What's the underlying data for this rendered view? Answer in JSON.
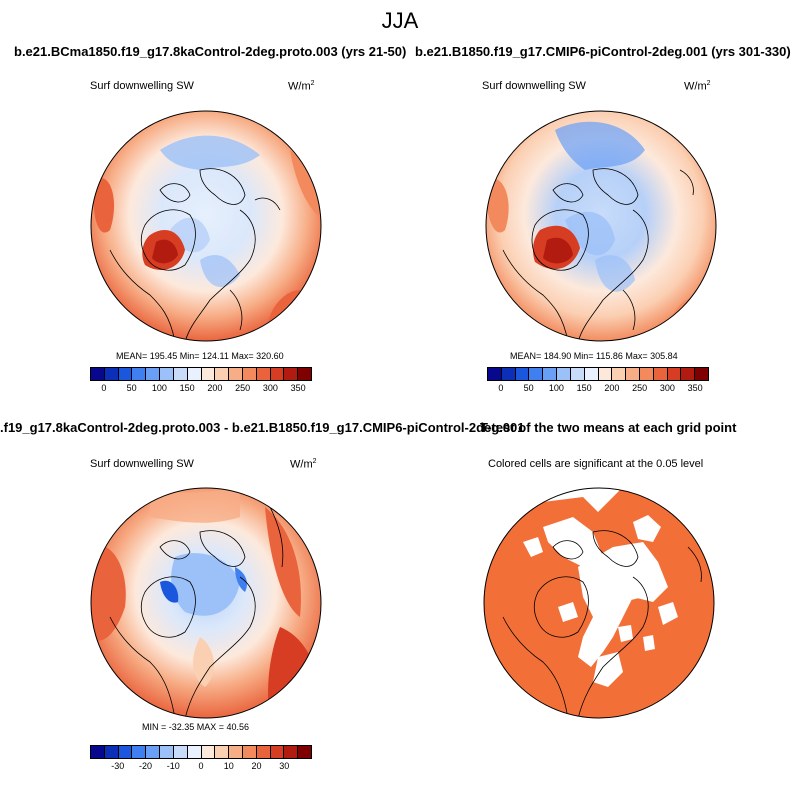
{
  "season": "JJA",
  "panels": [
    {
      "title": "b.e21.BCma1850.f19_g17.8kaControl-2deg.proto.003 (yrs 21-50)",
      "variable": "Surf downwelling SW",
      "units_base": "W/m",
      "units_exp": "2",
      "stats": "MEAN= 195.45  Min= 124.11  Max= 320.60"
    },
    {
      "title": "b.e21.B1850.f19_g17.CMIP6-piControl-2deg.001 (yrs 301-330)",
      "variable": "Surf downwelling SW",
      "units_base": "W/m",
      "units_exp": "2",
      "stats": "MEAN= 184.90  Min= 115.86  Max= 305.84"
    },
    {
      "title": ".f19_g17.8kaControl-2deg.proto.003 - b.e21.B1850.f19_g17.CMIP6-piControl-2deg.001",
      "variable": "Surf downwelling SW",
      "units_base": "W/m",
      "units_exp": "2",
      "stats": "MIN = -32.35 MAX =  40.56"
    },
    {
      "title": "T-test of the two means at each grid point",
      "subtitle": "Colored cells are significant at the 0.05 level"
    }
  ],
  "colorbars": {
    "absolute": {
      "labels": [
        "0",
        "50",
        "100",
        "150",
        "200",
        "250",
        "300",
        "350"
      ],
      "colors": [
        "#08088f",
        "#0c2fb8",
        "#1a57dc",
        "#3f7ff0",
        "#6a9ff6",
        "#9cc0f8",
        "#c8dcfa",
        "#e8f1fd",
        "#fde9dc",
        "#fbcfb2",
        "#f7ad86",
        "#f28a5d",
        "#e9633c",
        "#d63d22",
        "#b21c10",
        "#7f0000"
      ]
    },
    "difference": {
      "labels": [
        "-30",
        "-20",
        "-10",
        "0",
        "10",
        "20",
        "30"
      ],
      "colors": [
        "#08088f",
        "#0c2fb8",
        "#1a57dc",
        "#3f7ff0",
        "#6a9ff6",
        "#9cc0f8",
        "#c8dcfa",
        "#e8f1fd",
        "#fde9dc",
        "#fbcfb2",
        "#f7ad86",
        "#f28a5d",
        "#e9633c",
        "#d63d22",
        "#b21c10",
        "#7f0000"
      ]
    }
  },
  "significance_color": "#f26f38"
}
